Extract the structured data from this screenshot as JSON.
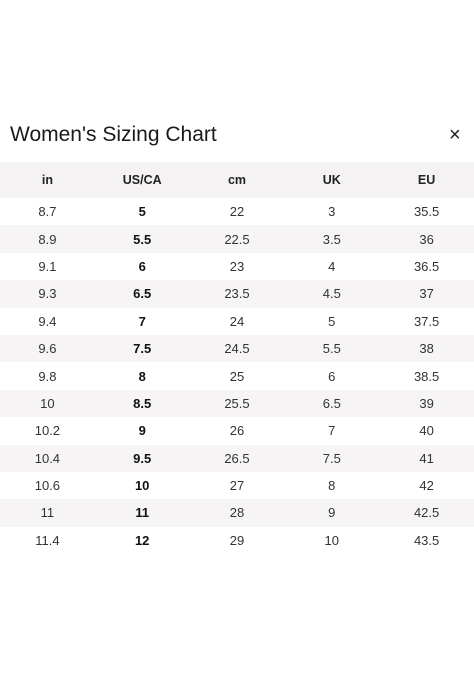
{
  "header": {
    "title": "Women's Sizing Chart",
    "close": "×"
  },
  "table": {
    "columns": [
      "in",
      "US/CA",
      "cm",
      "UK",
      "EU"
    ],
    "rows": [
      [
        "8.7",
        "5",
        "22",
        "3",
        "35.5"
      ],
      [
        "8.9",
        "5.5",
        "22.5",
        "3.5",
        "36"
      ],
      [
        "9.1",
        "6",
        "23",
        "4",
        "36.5"
      ],
      [
        "9.3",
        "6.5",
        "23.5",
        "4.5",
        "37"
      ],
      [
        "9.4",
        "7",
        "24",
        "5",
        "37.5"
      ],
      [
        "9.6",
        "7.5",
        "24.5",
        "5.5",
        "38"
      ],
      [
        "9.8",
        "8",
        "25",
        "6",
        "38.5"
      ],
      [
        "10",
        "8.5",
        "25.5",
        "6.5",
        "39"
      ],
      [
        "10.2",
        "9",
        "26",
        "7",
        "40"
      ],
      [
        "10.4",
        "9.5",
        "26.5",
        "7.5",
        "41"
      ],
      [
        "10.6",
        "10",
        "27",
        "8",
        "42"
      ],
      [
        "11",
        "11",
        "28",
        "9",
        "42.5"
      ],
      [
        "11.4",
        "12",
        "29",
        "10",
        "43.5"
      ]
    ]
  }
}
